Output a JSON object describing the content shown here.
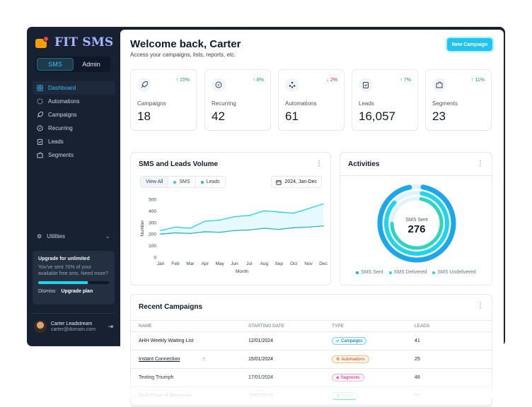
{
  "app": {
    "logo_text": "FIT SMS"
  },
  "switch": {
    "sms": "SMS",
    "admin": "Admin"
  },
  "nav": [
    "Dashboard",
    "Automations",
    "Campaigns",
    "Recurring",
    "Leads",
    "Segments"
  ],
  "utilities": "Utilities",
  "upgrade": {
    "title": "Upgrade for unlimited",
    "desc": "You've sent 70% of your available free sms. Need more?",
    "progress": 0.7,
    "dismiss": "Dismiss",
    "cta": "Upgrade plan"
  },
  "user": {
    "name": "Carter Leadstream",
    "email": "carter@domain.com"
  },
  "header": {
    "title": "Welcome back, Carter",
    "subtitle": "Access your campaigns, lists, reports, etc.",
    "new_button": "New Campaign"
  },
  "stats": [
    {
      "label": "Campaigns",
      "value": "18",
      "change": "15%",
      "dir": "up",
      "icon": "rocket-icon"
    },
    {
      "label": "Recurring",
      "value": "42",
      "change": "8%",
      "dir": "up",
      "icon": "compass-icon"
    },
    {
      "label": "Automations",
      "value": "61",
      "change": "2%",
      "dir": "down",
      "icon": "nodes-icon"
    },
    {
      "label": "Leads",
      "value": "16,057",
      "change": "7%",
      "dir": "up",
      "icon": "clipboard-icon"
    },
    {
      "label": "Segments",
      "value": "23",
      "change": "11%",
      "dir": "up",
      "icon": "puzzle-icon"
    }
  ],
  "volume": {
    "title": "SMS and Leads Volume",
    "filters": [
      "View All",
      "SMS",
      "Leads"
    ],
    "date": "2024, Jan-Dec"
  },
  "chart_data": {
    "type": "line",
    "x": [
      "Jan",
      "Feb",
      "Mar",
      "Apr",
      "May",
      "Jun",
      "Jul",
      "Aug",
      "Sep",
      "Oct",
      "Nov",
      "Dec"
    ],
    "xlabel": "Month",
    "ylabel": "Number",
    "ylim": [
      0,
      500
    ],
    "yticks": [
      0,
      100,
      200,
      300,
      400,
      500
    ],
    "grid": false,
    "series": [
      {
        "name": "SMS",
        "color": "#22d3ee",
        "values": [
          230,
          260,
          250,
          310,
          320,
          350,
          360,
          400,
          390,
          380,
          420,
          460
        ]
      },
      {
        "name": "Leads",
        "color": "#2bb4c8",
        "values": [
          200,
          210,
          205,
          220,
          215,
          230,
          235,
          250,
          240,
          255,
          260,
          270
        ]
      }
    ]
  },
  "activities": {
    "title": "Activities",
    "center_label": "SMS Sent",
    "center_value": "276",
    "legend": [
      "SMS Sent",
      "SMS Delivered",
      "SMS Undelivered"
    ],
    "colors": [
      "#1ea7e8",
      "#22d3ee",
      "#2dd4bf"
    ]
  },
  "recent": {
    "title": "Recent Campaigns",
    "columns": [
      "NAME",
      "STARTING DATE",
      "TYPE",
      "LEADS"
    ],
    "rows": [
      {
        "name": "AHH Weekly Waiting List",
        "date": "12/01/2024",
        "type": "Campaigns",
        "leads": "41"
      },
      {
        "name": "Instant Connection",
        "date": "15/01/2024",
        "type": "Automations",
        "leads": "25"
      },
      {
        "name": "Texting Triumph",
        "date": "17/01/2024",
        "type": "Segments",
        "leads": "48"
      },
      {
        "name": "Daily Dose of Messages",
        "date": "19/01/2024",
        "type": "Leads",
        "leads": "37"
      }
    ]
  }
}
